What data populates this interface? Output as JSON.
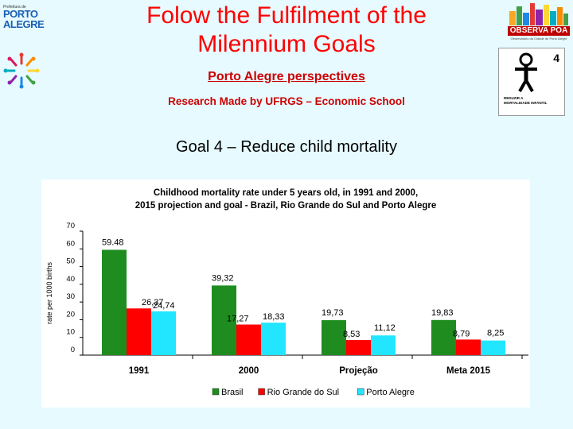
{
  "header": {
    "title_line1": "Folow the Fulfilment of the",
    "title_line2": "Milennium Goals",
    "subtitle": "Porto Alegre perspectives",
    "research": "Research Made by UFRGS – Economic School",
    "goal": "Goal 4 – Reduce child mortality"
  },
  "logos": {
    "left_small": "Prefeitura de",
    "left_porto": "PORTO",
    "left_alegre": "ALEGRE",
    "right_name": "OBSERVA POA",
    "right_sub": "Observatório da Cidade de Porto Alegre",
    "badge_number": "4",
    "badge_text_line1": "REDUZIR A",
    "badge_text_line2": "MORTALIDADE INFANTIL"
  },
  "colors": {
    "background": "#e6faff",
    "title": "#ff0000",
    "brasil": "#1e8c1e",
    "rgs": "#ff0000",
    "poa": "#22e6ff"
  },
  "chart_data": {
    "type": "bar",
    "title_line1": "Childhood mortality rate under 5 years old, in 1991 and 2000,",
    "title_line2": "2015 projection and goal - Brazil, Rio Grande do Sul and Porto Alegre",
    "ylabel": "rate per 1000 births",
    "xlabel": "",
    "ylim": [
      0,
      70
    ],
    "yticks": [
      "0",
      "10",
      "20",
      "30",
      "40",
      "50",
      "60",
      "70"
    ],
    "categories": [
      "1991",
      "2000",
      "Projeção",
      "Meta 2015"
    ],
    "legend_position": "bottom",
    "grid": false,
    "series": [
      {
        "name": "Brasil",
        "color": "#1e8c1e",
        "values": [
          59.48,
          39.32,
          19.73,
          19.83
        ],
        "labels": [
          "59.48",
          "39,32",
          "19,73",
          "19,83"
        ]
      },
      {
        "name": "Rio Grande do Sul",
        "color": "#ff0000",
        "values": [
          26.37,
          17.27,
          8.53,
          8.79
        ],
        "labels": [
          "26,37",
          "17,27",
          "8,53",
          "8,79"
        ]
      },
      {
        "name": "Porto Alegre",
        "color": "#22e6ff",
        "values": [
          24.74,
          18.33,
          11.12,
          8.25
        ],
        "labels": [
          "24,74",
          "18,33",
          "11,12",
          "8,25"
        ]
      }
    ]
  }
}
